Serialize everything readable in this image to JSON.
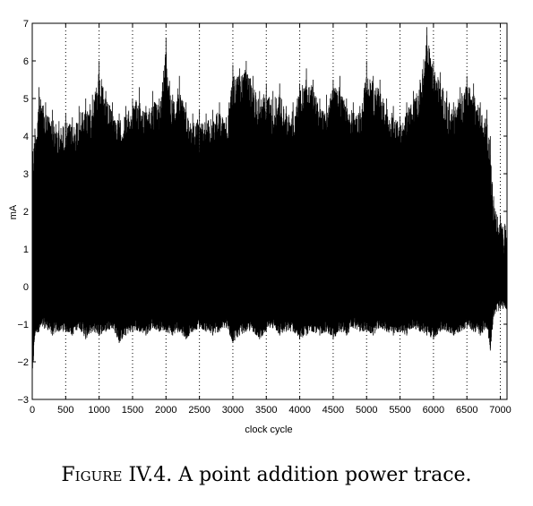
{
  "caption": {
    "label": "Figure",
    "number": "IV.4.",
    "text": "A point addition power trace."
  },
  "chart_data": {
    "type": "line",
    "title": "",
    "xlabel": "clock cycle",
    "ylabel": "mA",
    "xlim": [
      0,
      7100
    ],
    "ylim": [
      -3,
      7
    ],
    "xticks": [
      0,
      500,
      1000,
      1500,
      2000,
      2500,
      3000,
      3500,
      4000,
      4500,
      5000,
      5500,
      6000,
      6500,
      7000
    ],
    "yticks": [
      -3,
      -2,
      -1,
      0,
      1,
      2,
      3,
      4,
      5,
      6,
      7
    ],
    "grid": "x-dotted",
    "color": "#000000",
    "series": [
      {
        "x": [
          0,
          40,
          100,
          200,
          300,
          400,
          500,
          600,
          700,
          800,
          900,
          1000,
          1100,
          1200,
          1300,
          1400,
          1500,
          1600,
          1700,
          1800,
          1900,
          2000,
          2100,
          2200,
          2300,
          2400,
          2500,
          2600,
          2700,
          2800,
          2900,
          3000,
          3100,
          3200,
          3300,
          3400,
          3500,
          3600,
          3700,
          3800,
          3900,
          4000,
          4100,
          4200,
          4300,
          4400,
          4500,
          4600,
          4700,
          4800,
          4900,
          5000,
          5100,
          5200,
          5300,
          5400,
          5500,
          5600,
          5700,
          5800,
          5900,
          6000,
          6100,
          6200,
          6300,
          6400,
          6500,
          6600,
          6700,
          6800,
          6850,
          6900,
          7000,
          7100
        ],
        "upper": [
          3.9,
          4.2,
          5.3,
          4.9,
          4.7,
          4.4,
          4.6,
          4.5,
          4.8,
          5.0,
          5.1,
          6.0,
          5.2,
          4.9,
          4.6,
          4.8,
          5.0,
          5.3,
          4.8,
          5.2,
          5.0,
          6.6,
          5.1,
          5.6,
          4.9,
          4.6,
          4.7,
          4.6,
          4.7,
          4.9,
          4.5,
          5.9,
          5.8,
          6.0,
          5.6,
          5.2,
          5.4,
          5.2,
          5.4,
          4.8,
          4.9,
          5.4,
          5.8,
          5.5,
          5.0,
          5.1,
          5.5,
          5.6,
          5.0,
          4.9,
          4.8,
          6.0,
          5.6,
          5.5,
          5.0,
          4.8,
          4.5,
          4.9,
          5.2,
          5.5,
          6.9,
          6.0,
          5.7,
          5.2,
          4.9,
          5.3,
          5.6,
          5.4,
          4.9,
          4.7,
          4.0,
          2.4,
          1.9,
          1.9
        ],
        "lower": [
          -2.6,
          -1.3,
          -1.2,
          -1.1,
          -1.3,
          -1.2,
          -1.2,
          -1.3,
          -1.1,
          -1.4,
          -1.2,
          -1.3,
          -1.2,
          -1.1,
          -1.5,
          -1.3,
          -1.2,
          -1.2,
          -1.3,
          -1.1,
          -1.2,
          -1.2,
          -1.3,
          -1.2,
          -1.4,
          -1.2,
          -1.1,
          -1.2,
          -1.3,
          -1.2,
          -1.1,
          -1.5,
          -1.3,
          -1.2,
          -1.2,
          -1.4,
          -1.2,
          -1.1,
          -1.3,
          -1.2,
          -1.2,
          -1.4,
          -1.3,
          -1.2,
          -1.3,
          -1.2,
          -1.4,
          -1.2,
          -1.3,
          -1.1,
          -1.2,
          -1.2,
          -1.3,
          -1.1,
          -1.2,
          -1.3,
          -1.2,
          -1.3,
          -1.1,
          -1.2,
          -1.3,
          -1.4,
          -1.2,
          -1.2,
          -1.3,
          -1.2,
          -1.1,
          -1.2,
          -1.3,
          -1.1,
          -1.7,
          -0.8,
          -0.6,
          -0.6
        ]
      }
    ]
  }
}
